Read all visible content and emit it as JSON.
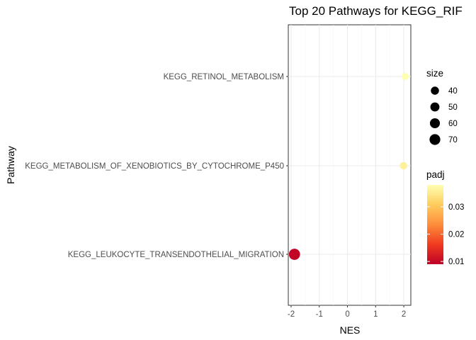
{
  "chart_data": {
    "type": "scatter",
    "title": "Top 20 Pathways for  KEGG_RIF",
    "xlabel": "NES",
    "ylabel": "Pathway",
    "xlim": [
      -2.1,
      2.25
    ],
    "x_ticks": [
      -2,
      -1,
      0,
      1,
      2
    ],
    "x_tick_labels": [
      "-2",
      "-1",
      "0",
      "1",
      "2"
    ],
    "grid": true,
    "categories": [
      "KEGG_RETINOL_METABOLISM",
      "KEGG_METABOLISM_OF_XENOBIOTICS_BY_CYTOCHROME_P450",
      "KEGG_LEUKOCYTE_TRANSENDOTHELIAL_MIGRATION"
    ],
    "points": [
      {
        "pathway": "KEGG_RETINOL_METABOLISM",
        "NES": 2.05,
        "size": 30,
        "padj": 0.038
      },
      {
        "pathway": "KEGG_METABOLISM_OF_XENOBIOTICS_BY_CYTOCHROME_P450",
        "NES": 1.99,
        "size": 33,
        "padj": 0.036
      },
      {
        "pathway": "KEGG_LEUKOCYTE_TRANSENDOTHELIAL_MIGRATION",
        "NES": -1.88,
        "size": 75,
        "padj": 0.0095
      }
    ],
    "legend_size": {
      "title": "size",
      "values": [
        40,
        50,
        60,
        70
      ],
      "labels": [
        "40",
        "50",
        "60",
        "70"
      ]
    },
    "legend_color": {
      "title": "padj",
      "range": [
        0.009,
        0.038
      ],
      "ticks": [
        0.01,
        0.02,
        0.03
      ],
      "tick_labels": [
        "0.01",
        "0.02",
        "0.03"
      ],
      "colors": [
        "#bd0026",
        "#f03b20",
        "#fd8d3c",
        "#fecc5c",
        "#ffffb2"
      ]
    },
    "legend_placement": "right"
  }
}
